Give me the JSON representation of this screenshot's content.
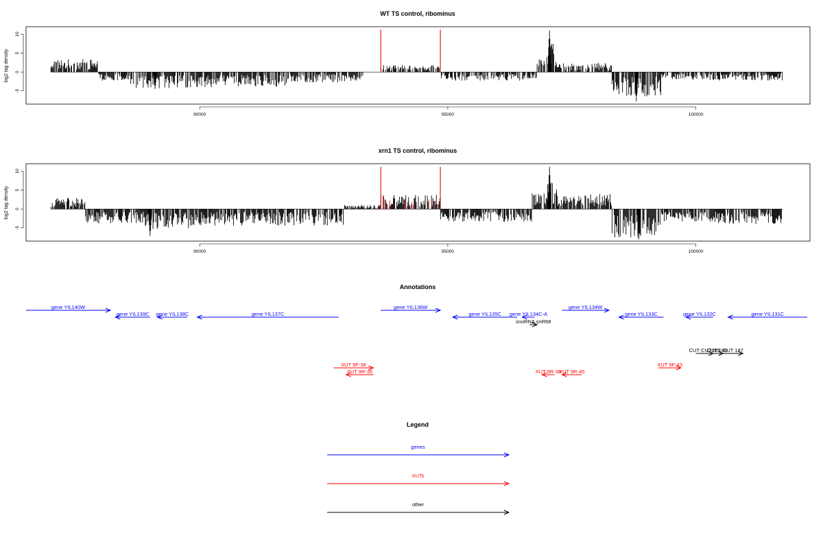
{
  "chart_data": [
    {
      "type": "bar",
      "title": "WT TS control, ribominus",
      "xlabel": "",
      "ylabel": "log2 tag density",
      "xlim": [
        86500,
        102300
      ],
      "ylim": [
        -8.5,
        12
      ],
      "x_ticks": [
        90000,
        95000,
        100000
      ],
      "y_ticks": [
        -5,
        0,
        5,
        10
      ],
      "signal_x_range": [
        87000,
        101750
      ],
      "background_color": "#000000",
      "highlight_color": "#e31a1c",
      "highlight_lines": [
        93650,
        94850
      ],
      "highlight_height": 11.2,
      "series_profile": [
        {
          "x_start": 87000,
          "x_end": 87950,
          "value": 2.5
        },
        {
          "x_start": 87950,
          "x_end": 88600,
          "value": -1.7
        },
        {
          "x_start": 88600,
          "x_end": 89800,
          "value": -3.2
        },
        {
          "x_start": 89800,
          "x_end": 91800,
          "value": -3.0
        },
        {
          "x_start": 91800,
          "x_end": 93300,
          "value": -2.0
        },
        {
          "x_start": 93300,
          "x_end": 93650,
          "value": 0
        },
        {
          "x_start": 93650,
          "x_end": 94850,
          "value": 1.4
        },
        {
          "x_start": 94850,
          "x_end": 95650,
          "value": -1.7
        },
        {
          "x_start": 95650,
          "x_end": 96800,
          "value": -1.7
        },
        {
          "x_start": 96800,
          "x_end": 97000,
          "value": 3.0
        },
        {
          "x_start": 97000,
          "x_end": 97200,
          "value": 6.0
        },
        {
          "x_start": 97200,
          "x_end": 98300,
          "value": 1.8
        },
        {
          "x_start": 98300,
          "x_end": 99300,
          "value": -5.0
        },
        {
          "x_start": 99300,
          "x_end": 100200,
          "value": -1.5
        },
        {
          "x_start": 100200,
          "x_end": 101750,
          "value": -1.7
        }
      ],
      "peaks": [
        {
          "x": 97050,
          "value": 11.0
        },
        {
          "x": 98800,
          "value": -7.8
        },
        {
          "x": 89100,
          "value": -4.5
        }
      ]
    },
    {
      "type": "bar",
      "title": "xrn1 TS control, ribominus",
      "xlabel": "",
      "ylabel": "log2 tag density",
      "xlim": [
        86500,
        102300
      ],
      "ylim": [
        -8.5,
        12
      ],
      "x_ticks": [
        90000,
        95000,
        100000
      ],
      "y_ticks": [
        -5,
        0,
        5,
        10
      ],
      "signal_x_range": [
        87000,
        101750
      ],
      "background_color": "#000000",
      "highlight_color": "#e31a1c",
      "highlight_lines": [
        93650,
        94850
      ],
      "highlight_height": 11.2,
      "series_profile": [
        {
          "x_start": 87000,
          "x_end": 87700,
          "value": 2.2
        },
        {
          "x_start": 87700,
          "x_end": 88900,
          "value": -2.8
        },
        {
          "x_start": 88900,
          "x_end": 89800,
          "value": -4.0
        },
        {
          "x_start": 89800,
          "x_end": 92900,
          "value": -3.3
        },
        {
          "x_start": 92900,
          "x_end": 93650,
          "value": 0.8
        },
        {
          "x_start": 93650,
          "x_end": 94850,
          "value": 2.8
        },
        {
          "x_start": 94850,
          "x_end": 96700,
          "value": -2.5
        },
        {
          "x_start": 96700,
          "x_end": 97000,
          "value": 3.2
        },
        {
          "x_start": 97000,
          "x_end": 97200,
          "value": 5.5
        },
        {
          "x_start": 97200,
          "x_end": 98300,
          "value": 3.0
        },
        {
          "x_start": 98300,
          "x_end": 99300,
          "value": -5.8
        },
        {
          "x_start": 99300,
          "x_end": 100300,
          "value": -2.5
        },
        {
          "x_start": 100300,
          "x_end": 101750,
          "value": -3.0
        }
      ],
      "peaks": [
        {
          "x": 97050,
          "value": 11.2
        },
        {
          "x": 98850,
          "value": -8.0
        },
        {
          "x": 89000,
          "value": -7.2
        }
      ]
    }
  ],
  "annotations": {
    "title": "Annotations",
    "xlim": [
      86500,
      102300
    ],
    "features": [
      {
        "label": "gene YIL140W",
        "start": 86500,
        "end": 88200,
        "strand": "+",
        "row": 0,
        "color": "#0000ff"
      },
      {
        "label": "gene YIL139C",
        "start": 88300,
        "end": 89000,
        "strand": "-",
        "row": 1,
        "color": "#0000ff"
      },
      {
        "label": "gene YIL138C",
        "start": 89150,
        "end": 89750,
        "strand": "-",
        "row": 1,
        "color": "#0000ff"
      },
      {
        "label": "gene YIL137C",
        "start": 89950,
        "end": 92800,
        "strand": "-",
        "row": 1,
        "color": "#0000ff"
      },
      {
        "label": "gene YIL136W",
        "start": 93650,
        "end": 94850,
        "strand": "+",
        "row": 0,
        "color": "#0000ff"
      },
      {
        "label": "gene YIL135C",
        "start": 95100,
        "end": 96400,
        "strand": "-",
        "row": 1,
        "color": "#0000ff"
      },
      {
        "label": "gene YIL134C-A",
        "start": 96500,
        "end": 96750,
        "strand": "-",
        "row": 1,
        "color": "#0000ff"
      },
      {
        "label": "gene YIL134W",
        "start": 97300,
        "end": 98250,
        "strand": "+",
        "row": 0,
        "color": "#0000ff"
      },
      {
        "label": "gene YIL133C",
        "start": 98450,
        "end": 99350,
        "strand": "-",
        "row": 1,
        "color": "#0000ff"
      },
      {
        "label": "gene YIL132C",
        "start": 99800,
        "end": 100350,
        "strand": "-",
        "row": 1,
        "color": "#0000ff"
      },
      {
        "label": "gene YIL131C",
        "start": 100650,
        "end": 102300,
        "strand": "-",
        "row": 1,
        "color": "#0000ff"
      },
      {
        "label": "snoRNA snR68",
        "start": 96650,
        "end": 96800,
        "strand": "+",
        "row": 2,
        "color": "#000000"
      },
      {
        "label": "CUT CUT185",
        "start": 100000,
        "end": 100350,
        "strand": "+",
        "row": 3,
        "color": "#000000"
      },
      {
        "label": "CUT 186",
        "start": 100300,
        "end": 100550,
        "strand": "+",
        "row": 3,
        "color": "#000000"
      },
      {
        "label": "CUT 187",
        "start": 100550,
        "end": 100950,
        "strand": "+",
        "row": 3,
        "color": "#000000"
      },
      {
        "label": "XUT 9F-38",
        "start": 92700,
        "end": 93500,
        "strand": "+",
        "row": 4,
        "color": "#ff0000"
      },
      {
        "label": "XUT 9R-35",
        "start": 92950,
        "end": 93500,
        "strand": "-",
        "row": 5,
        "color": "#ff0000"
      },
      {
        "label": "XUT 9R-38",
        "start": 96900,
        "end": 97150,
        "strand": "-",
        "row": 5,
        "color": "#ff0000"
      },
      {
        "label": "XUT 9R-40",
        "start": 97300,
        "end": 97700,
        "strand": "-",
        "row": 5,
        "color": "#ff0000"
      },
      {
        "label": "XUT 9F-43",
        "start": 99250,
        "end": 99700,
        "strand": "+",
        "row": 4,
        "color": "#ff0000"
      }
    ]
  },
  "legend": {
    "title": "Legend",
    "items": [
      {
        "label": "genes",
        "color": "#0000ff"
      },
      {
        "label": "XUTs",
        "color": "#ff0000"
      },
      {
        "label": "other",
        "color": "#000000"
      }
    ]
  }
}
